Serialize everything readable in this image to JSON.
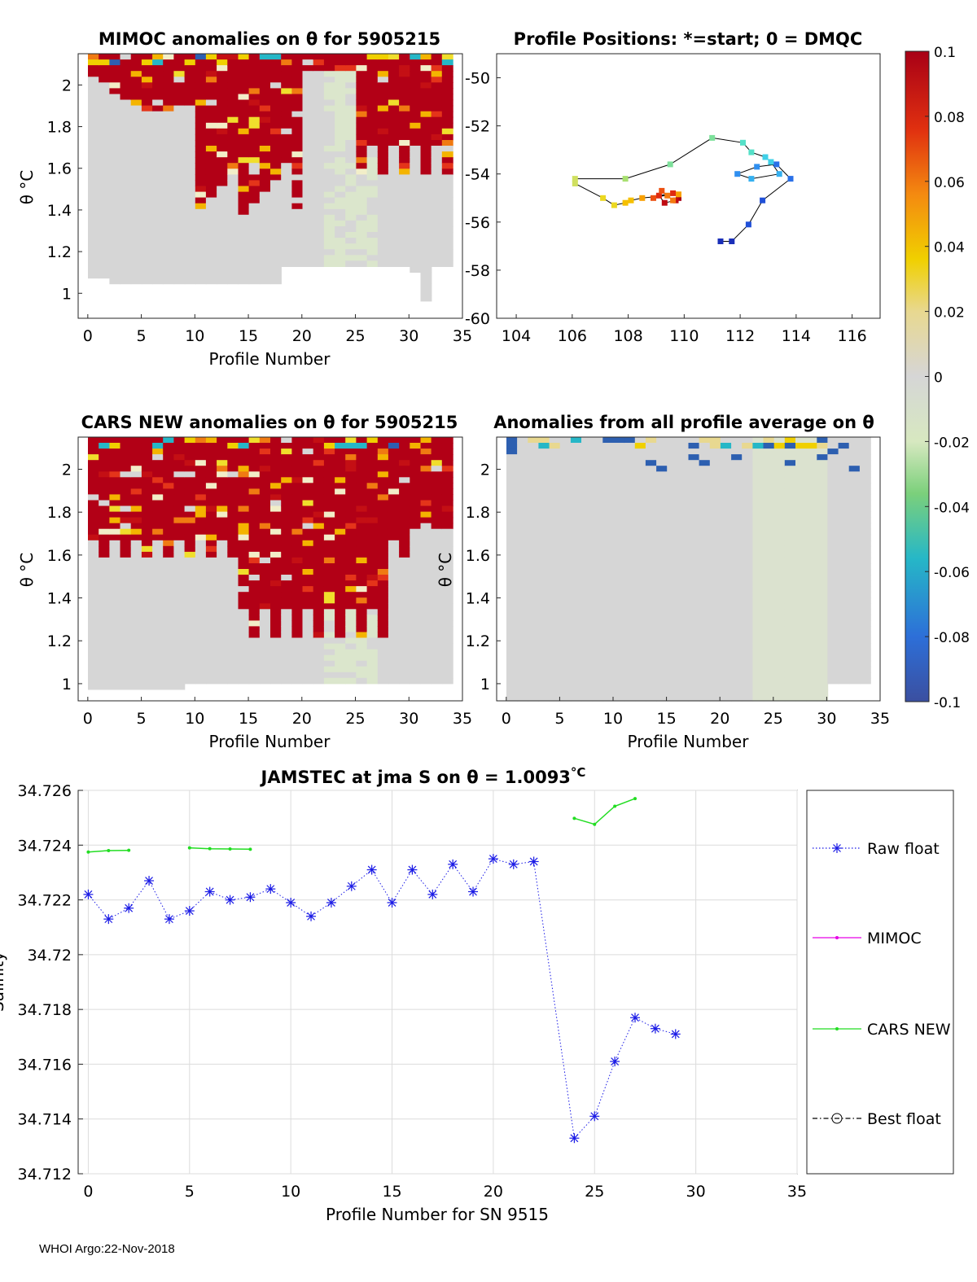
{
  "colors": {
    "anom_red": "#b20016",
    "neutral": "#d6d6d6",
    "raw_float": "#1a1ae6",
    "mimoc": "#e600e6",
    "cars": "#22dd22",
    "best": "#000000"
  },
  "colorbar": {
    "ticks": [
      "0.1",
      "0.08",
      "0.06",
      "0.04",
      "0.02",
      "0",
      "-0.02",
      "-0.04",
      "-0.06",
      "-0.08",
      "-0.1"
    ],
    "range": [
      -0.1,
      0.1
    ]
  },
  "footer": "WHOI Argo:22-Nov-2018",
  "chart_data": [
    {
      "type": "heatmap",
      "title": "MIMOC anomalies on θ  for 5905215",
      "xlabel": "Profile Number",
      "ylabel": "θ °C",
      "xlim": [
        -1,
        35
      ],
      "ylim": [
        0.88,
        2.15
      ],
      "xticks": [
        "0",
        "5",
        "10",
        "15",
        "20",
        "25",
        "30",
        "35"
      ],
      "yticks": [
        "1",
        "1.2",
        "1.4",
        "1.6",
        "1.8",
        "2"
      ],
      "description_values": "mostly positive (>0.08) anomalies in upper layers, near-zero in lower layers"
    },
    {
      "type": "scatter",
      "title": "Profile Positions: *=start; 0 = DMQC",
      "xlabel": "",
      "ylabel": "",
      "xlim": [
        103.3,
        117
      ],
      "ylim": [
        -60,
        -49
      ],
      "xticks": [
        "104",
        "106",
        "108",
        "110",
        "112",
        "114",
        "116"
      ],
      "yticks": [
        "-50",
        "-52",
        "-54",
        "-56",
        "-58",
        "-60"
      ],
      "lon": [
        109.8,
        109.7,
        109.3,
        109.1,
        109.6,
        108.9,
        109.2,
        109.6,
        109.4,
        109.8,
        108.5,
        108.1,
        107.9,
        107.5,
        107.1,
        106.1,
        106.1,
        107.9,
        109.5,
        111.0,
        112.1,
        112.4,
        112.9,
        113.1,
        113.4,
        112.4,
        111.9,
        112.6,
        113.3,
        113.8,
        112.8,
        112.3,
        111.7,
        111.3
      ],
      "lat": [
        -55.0,
        -55.1,
        -55.2,
        -54.9,
        -54.8,
        -55.0,
        -54.7,
        -55.1,
        -54.9,
        -54.85,
        -55.0,
        -55.1,
        -55.2,
        -55.3,
        -55.0,
        -54.4,
        -54.2,
        -54.2,
        -53.6,
        -52.5,
        -52.7,
        -53.1,
        -53.3,
        -53.5,
        -54.0,
        -54.2,
        -54.0,
        -53.7,
        -53.6,
        -54.2,
        -55.1,
        -56.1,
        -56.8,
        -56.8
      ]
    },
    {
      "type": "heatmap",
      "title": "CARS NEW anomalies on θ for 5905215",
      "xlabel": "Profile Number",
      "ylabel": "θ °C",
      "xlim": [
        -1,
        35
      ],
      "ylim": [
        0.92,
        2.15
      ],
      "xticks": [
        "0",
        "5",
        "10",
        "15",
        "20",
        "25",
        "30",
        "35"
      ],
      "yticks": [
        "1",
        "1.2",
        "1.4",
        "1.6",
        "1.8",
        "2"
      ],
      "description_values": "strong positive anomalies (>0.1) across profiles 0-33 down to ~1.1°C"
    },
    {
      "type": "heatmap",
      "title": "Anomalies from all profile average on θ",
      "xlabel": "Profile Number",
      "ylabel": "θ °C",
      "xlim": [
        0,
        35
      ],
      "ylim": [
        0.92,
        2.15
      ],
      "xticks": [
        "0",
        "5",
        "10",
        "15",
        "20",
        "25",
        "30",
        "35"
      ],
      "yticks": [
        "1",
        "1.2",
        "1.4",
        "1.6",
        "1.8",
        "2"
      ],
      "description_values": "near-zero anomalies with small negative patches near 2°C"
    },
    {
      "type": "line",
      "title": "JAMSTEC at jma S on θ = 1.0093",
      "title_unit": "°C",
      "xlabel": "Profile Number for SN 9515",
      "ylabel": "Salinity",
      "xlim": [
        -0.5,
        35
      ],
      "ylim": [
        34.712,
        34.726
      ],
      "xticks": [
        "0",
        "5",
        "10",
        "15",
        "20",
        "25",
        "30",
        "35"
      ],
      "yticks": [
        "34.712",
        "34.714",
        "34.716",
        "34.718",
        "34.72",
        "34.722",
        "34.724",
        "34.726"
      ],
      "series": [
        {
          "name": "Raw float",
          "x": [
            0,
            1,
            2,
            3,
            4,
            5,
            6,
            7,
            8,
            9,
            10,
            11,
            12,
            13,
            14,
            15,
            16,
            17,
            18,
            19,
            20,
            21,
            22,
            24,
            25,
            26,
            27,
            28,
            29
          ],
          "values": [
            34.7222,
            34.7213,
            34.7217,
            34.7227,
            34.7213,
            34.7216,
            34.7223,
            34.722,
            34.7221,
            34.7224,
            34.7219,
            34.7214,
            34.7219,
            34.7225,
            34.7231,
            34.7219,
            34.7231,
            34.7222,
            34.7233,
            34.7223,
            34.7235,
            34.7233,
            34.7234,
            34.7133,
            34.7141,
            34.7161,
            34.7177,
            34.7173,
            34.7171
          ]
        },
        {
          "name": "MIMOC",
          "x": [],
          "values": []
        },
        {
          "name": "CARS NEW",
          "segments": [
            {
              "x": [
                0,
                1,
                2
              ],
              "values": [
                34.72375,
                34.7238,
                34.72381
              ]
            },
            {
              "x": [
                5,
                6,
                7,
                8
              ],
              "values": [
                34.7239,
                34.72387,
                34.72386,
                34.72385
              ]
            },
            {
              "x": [
                24,
                25,
                26,
                27
              ],
              "values": [
                34.72498,
                34.72476,
                34.72542,
                34.7257
              ]
            }
          ]
        },
        {
          "name": "Best float",
          "x": [],
          "values": []
        }
      ],
      "legend_position": "right"
    }
  ]
}
